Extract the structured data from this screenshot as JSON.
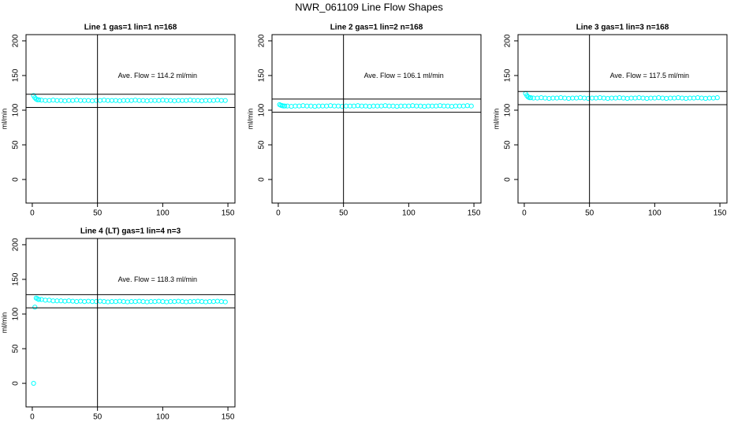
{
  "title": "NWR_061109  Line Flow Shapes",
  "chart_data": [
    {
      "type": "scatter",
      "title": "Line 1 gas=1 lin=1 n=168",
      "ylabel": "ml/min",
      "annotation": "Ave. Flow =  114.2  ml/min",
      "color": "#00ffff",
      "xlim": [
        -4.8,
        155.4
      ],
      "ylim": [
        -34,
        209
      ],
      "xticks": [
        0,
        50,
        100,
        150
      ],
      "yticks": [
        0,
        50,
        100,
        150,
        200
      ],
      "hlines": [
        123,
        104
      ],
      "vlines": [
        50
      ],
      "x": [
        1,
        2,
        3,
        4,
        5,
        7,
        10,
        13,
        16,
        19,
        22,
        25,
        28,
        31,
        34,
        37,
        40,
        43,
        46,
        49,
        52,
        55,
        58,
        61,
        64,
        67,
        70,
        73,
        76,
        79,
        82,
        85,
        88,
        91,
        94,
        97,
        100,
        103,
        106,
        109,
        112,
        115,
        118,
        121,
        124,
        127,
        130,
        133,
        136,
        139,
        142,
        145,
        148
      ],
      "values": [
        121,
        118,
        116,
        115,
        115,
        114.5,
        114,
        114,
        114.5,
        114,
        114,
        113.5,
        114,
        114,
        114.5,
        114,
        114,
        114,
        113.5,
        114,
        114,
        114.5,
        114,
        114,
        114,
        113.5,
        114,
        114,
        114,
        114.5,
        114,
        114,
        113.5,
        114,
        114,
        114,
        114.5,
        114,
        114,
        113.5,
        114,
        114,
        114,
        114.5,
        114,
        114,
        113.5,
        114,
        114,
        114,
        114.5,
        114,
        114
      ]
    },
    {
      "type": "scatter",
      "title": "Line 2 gas=1 lin=2 n=168",
      "ylabel": "ml/min",
      "annotation": "Ave. Flow =  106.1  ml/min",
      "color": "#00ffff",
      "xlim": [
        -4.8,
        155.4
      ],
      "ylim": [
        -34,
        209
      ],
      "xticks": [
        0,
        50,
        100,
        150
      ],
      "yticks": [
        0,
        50,
        100,
        150,
        200
      ],
      "hlines": [
        116,
        97
      ],
      "vlines": [
        50
      ],
      "x": [
        1,
        2,
        3,
        4,
        5,
        7,
        10,
        13,
        16,
        19,
        22,
        25,
        28,
        31,
        34,
        37,
        40,
        43,
        46,
        49,
        52,
        55,
        58,
        61,
        64,
        67,
        70,
        73,
        76,
        79,
        82,
        85,
        88,
        91,
        94,
        97,
        100,
        103,
        106,
        109,
        112,
        115,
        118,
        121,
        124,
        127,
        130,
        133,
        136,
        139,
        142,
        145,
        148
      ],
      "values": [
        108,
        107,
        106.5,
        106,
        106,
        106,
        105.5,
        106,
        106,
        106.5,
        106,
        106,
        105.5,
        106,
        106,
        106,
        106.5,
        106,
        106,
        105.5,
        106,
        106,
        106,
        106.5,
        106,
        106,
        105.5,
        106,
        106,
        106,
        106.5,
        106,
        106,
        105.5,
        106,
        106,
        106,
        106.5,
        106,
        106,
        105.5,
        106,
        106,
        106,
        106.5,
        106,
        106,
        105.5,
        106,
        106,
        106,
        106.5,
        106
      ]
    },
    {
      "type": "scatter",
      "title": "Line 3 gas=1 lin=3 n=168",
      "ylabel": "ml/min",
      "annotation": "Ave. Flow =  117.5  ml/min",
      "color": "#00ffff",
      "xlim": [
        -4.8,
        155.4
      ],
      "ylim": [
        -34,
        209
      ],
      "xticks": [
        0,
        50,
        100,
        150
      ],
      "yticks": [
        0,
        50,
        100,
        150,
        200
      ],
      "hlines": [
        127,
        108
      ],
      "vlines": [
        50
      ],
      "x": [
        1,
        2,
        3,
        4,
        5,
        7,
        10,
        13,
        16,
        19,
        22,
        25,
        28,
        31,
        34,
        37,
        40,
        43,
        46,
        49,
        52,
        55,
        58,
        61,
        64,
        67,
        70,
        73,
        76,
        79,
        82,
        85,
        88,
        91,
        94,
        97,
        100,
        103,
        106,
        109,
        112,
        115,
        118,
        121,
        124,
        127,
        130,
        133,
        136,
        139,
        142,
        145,
        148
      ],
      "values": [
        124,
        121,
        119,
        118,
        118,
        117.5,
        117.5,
        118,
        117.5,
        117,
        117.5,
        117.5,
        118,
        117.5,
        117,
        117.5,
        117.5,
        118,
        117.5,
        117,
        117.5,
        117.5,
        118,
        117.5,
        117,
        117.5,
        117.5,
        118,
        117.5,
        117,
        117.5,
        117.5,
        118,
        117.5,
        117,
        117.5,
        117.5,
        118,
        117.5,
        117,
        117.5,
        117.5,
        118,
        117.5,
        117,
        117.5,
        117.5,
        118,
        117.5,
        117,
        117.5,
        117.5,
        118
      ]
    },
    {
      "type": "scatter",
      "title": "Line 4 (LT) gas=1 lin=4 n=3",
      "ylabel": "ml/min",
      "annotation": "Ave. Flow =  118.3  ml/min",
      "color": "#00ffff",
      "xlim": [
        -4.8,
        155.4
      ],
      "ylim": [
        -34,
        209
      ],
      "xticks": [
        0,
        50,
        100,
        150
      ],
      "yticks": [
        0,
        50,
        100,
        150,
        200
      ],
      "hlines": [
        128,
        109
      ],
      "vlines": [
        50
      ],
      "x": [
        1,
        2,
        3,
        4,
        5,
        7,
        10,
        13,
        16,
        19,
        22,
        25,
        28,
        31,
        34,
        37,
        40,
        43,
        46,
        49,
        52,
        55,
        58,
        61,
        64,
        67,
        70,
        73,
        76,
        79,
        82,
        85,
        88,
        91,
        94,
        97,
        100,
        103,
        106,
        109,
        112,
        115,
        118,
        121,
        124,
        127,
        130,
        133,
        136,
        139,
        142,
        145,
        148
      ],
      "values": [
        0,
        110,
        123,
        122,
        121,
        121,
        120,
        120,
        119,
        119,
        119,
        118.5,
        119,
        118.5,
        118,
        118.5,
        118,
        118.5,
        118,
        118,
        118.5,
        118,
        117.5,
        118,
        118,
        118.5,
        118,
        117.5,
        118,
        118,
        118.5,
        118,
        117.5,
        118,
        118,
        118.5,
        118,
        117.5,
        118,
        118,
        118.5,
        118,
        117.5,
        118,
        118,
        118.5,
        118,
        117.5,
        118,
        118,
        118.5,
        118,
        117.5
      ]
    }
  ]
}
